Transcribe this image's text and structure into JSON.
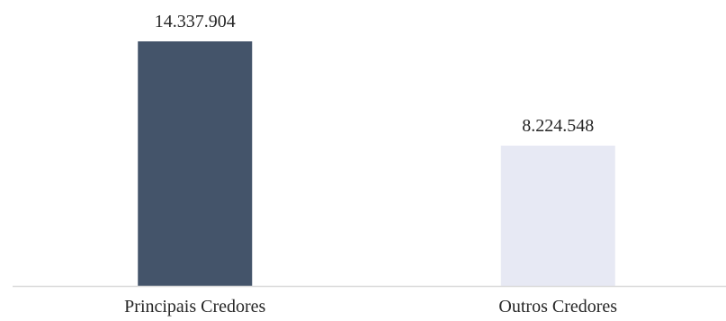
{
  "chart_data": {
    "type": "bar",
    "categories": [
      "Principais Credores",
      "Outros Credores"
    ],
    "values": [
      14337904,
      8224548
    ],
    "value_labels": [
      "14.337.904",
      "8.224.548"
    ],
    "bar_colors": [
      "#44546a",
      "#e7e9f4"
    ],
    "axis_color": "#d9d9d9",
    "text_color": "#262626",
    "grid": false,
    "legend": "none",
    "ylim": [
      0,
      16000000
    ]
  }
}
